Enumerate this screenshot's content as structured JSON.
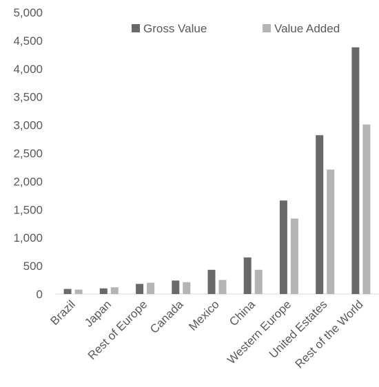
{
  "chart_data": {
    "type": "bar",
    "title": "",
    "xlabel": "",
    "ylabel": "",
    "ylim": [
      0,
      5000
    ],
    "yticks": [
      "0",
      "500",
      "1,000",
      "1,500",
      "2,000",
      "2,500",
      "3,000",
      "3,500",
      "4,000",
      "4,500",
      "5,000"
    ],
    "ytick_values": [
      0,
      500,
      1000,
      1500,
      2000,
      2500,
      3000,
      3500,
      4000,
      4500,
      5000
    ],
    "grid": false,
    "legend_position": "top",
    "categories": [
      "Brazil",
      "Japan",
      "Rest of Europe",
      "Canada",
      "Mexico",
      "China",
      "Western Europe",
      "United Estates",
      "Rest of the World"
    ],
    "series": [
      {
        "name": "Gross Value",
        "color": "#696969",
        "values": [
          90,
          100,
          180,
          240,
          430,
          650,
          1660,
          2820,
          4380
        ]
      },
      {
        "name": "Value Added",
        "color": "#b4b4b4",
        "values": [
          80,
          120,
          200,
          210,
          250,
          430,
          1340,
          2210,
          3010
        ]
      }
    ]
  }
}
